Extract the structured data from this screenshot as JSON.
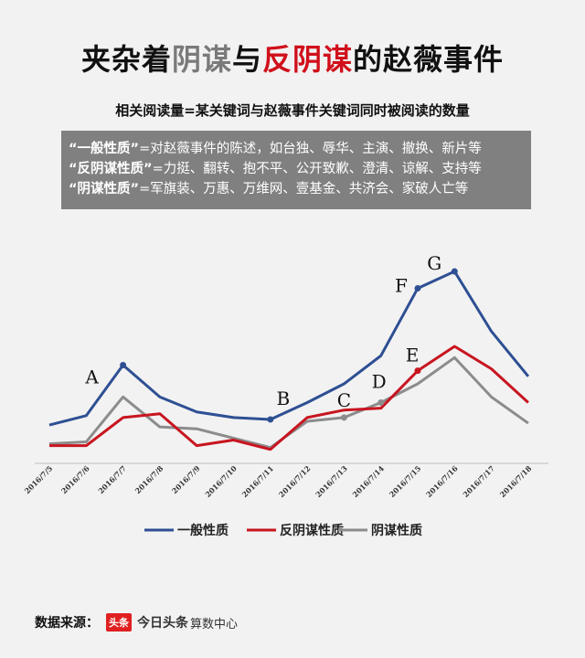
{
  "header": {
    "title_part1": "夹杂着",
    "title_part2": "阴谋",
    "title_part3": "与",
    "title_part4": "反阴谋",
    "title_part5": "的赵薇事件",
    "subtitle": "相关阅读量=某关键词与赵薇事件关键词同时被阅读的数量"
  },
  "legend_box": {
    "rows": [
      {
        "key": "“一般性质”",
        "text": "=对赵薇事件的陈述，如台独、辱华、主演、撤换、新片等"
      },
      {
        "key": "“反阴谋性质”",
        "text": "=力挺、翻转、抱不平、公开致歉、澄清、谅解、支持等"
      },
      {
        "key": "“阴谋性质”",
        "text": "=军旗装、万惠、万维网、壹基金、共济会、家破人亡等"
      }
    ]
  },
  "chart_data": {
    "type": "line",
    "categories": [
      "2016/7/5",
      "2016/7/6",
      "2016/7/7",
      "2016/7/8",
      "2016/7/9",
      "2016/7/10",
      "2016/7/11",
      "2016/7/12",
      "2016/7/13",
      "2016/7/14",
      "2016/7/15",
      "2016/7/16",
      "2016/7/17",
      "2016/7/18"
    ],
    "ylim": [
      0,
      100
    ],
    "series": [
      {
        "name": "一般性质",
        "color": "#2e4f93",
        "values": [
          18,
          23,
          50,
          33,
          25,
          22,
          21,
          30,
          40,
          55,
          91,
          100,
          68,
          44
        ]
      },
      {
        "name": "反阴谋性质",
        "color": "#c81520",
        "values": [
          7,
          7,
          22,
          24,
          7,
          10,
          5,
          22,
          26,
          27,
          47,
          60,
          48,
          30
        ]
      },
      {
        "name": "阴谋性质",
        "color": "#8c8c8c",
        "values": [
          8,
          9,
          33,
          17,
          16,
          11,
          6,
          20,
          22,
          30,
          40,
          54,
          33,
          19
        ]
      }
    ],
    "annotations": [
      {
        "label": "A",
        "series": 0,
        "index": 2
      },
      {
        "label": "B",
        "series": 0,
        "index": 6
      },
      {
        "label": "C",
        "series": 2,
        "index": 8
      },
      {
        "label": "D",
        "series": 2,
        "index": 9
      },
      {
        "label": "E",
        "series": 1,
        "index": 10
      },
      {
        "label": "F",
        "series": 0,
        "index": 10
      },
      {
        "label": "G",
        "series": 0,
        "index": 11
      }
    ]
  },
  "footer": {
    "source_label": "数据来源：",
    "logo_badge": "头条",
    "logo_name": "今日头条",
    "logo_sub": "算数中心"
  }
}
